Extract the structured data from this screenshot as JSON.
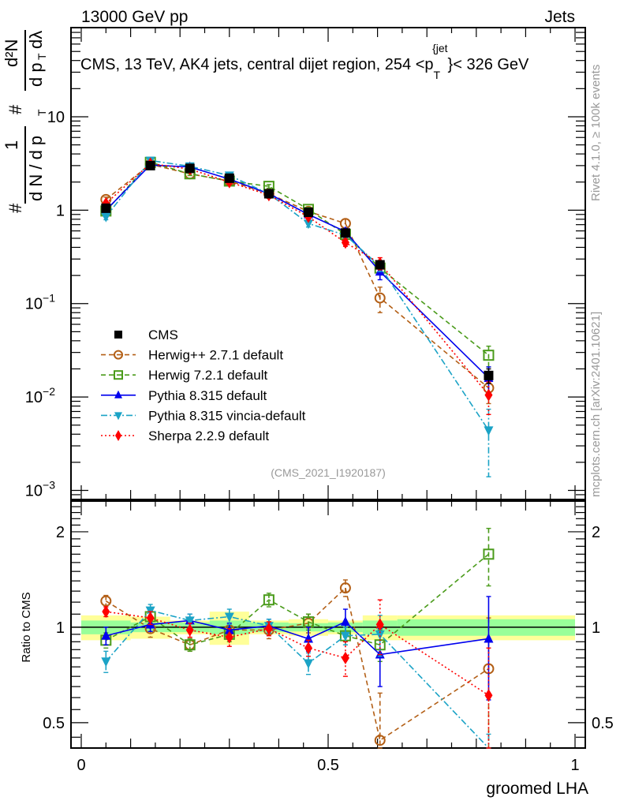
{
  "header": {
    "left": "13000 GeV pp",
    "right": "Jets"
  },
  "side_labels": {
    "rivet": "Rivet 4.1.0, ≥ 100k events",
    "mcplots": "mcplots.cern.ch [arXiv:2401.10621]"
  },
  "chart_data": [
    {
      "type": "line",
      "panel": "main",
      "title": "CMS, 13 TeV, AK4 jets, central dijet region, 254 <p_T^{jet}< 326 GeV",
      "title_parts": {
        "pre": "CMS, 13 TeV, AK4 jets, central dijet region, 254 <p",
        "sub": "T",
        "sup": "{jet",
        "post": "}< 326 GeV"
      },
      "ylabel": "1/dN/dp_T  d²N/dp_T dλ",
      "ylabel_parts": {
        "num_left": "1",
        "den_left": "d N / d p",
        "num_right": "d²N",
        "den_right": "d p",
        "lambda": "dλ",
        "sub": "T",
        "hash": "#"
      },
      "yscale": "log",
      "ylim": [
        0.0008,
        90
      ],
      "xlim": [
        -0.007,
        1.01
      ],
      "yticks": [
        {
          "v": 0.001,
          "m": "10",
          "e": "−3"
        },
        {
          "v": 0.01,
          "m": "10",
          "e": "−2"
        },
        {
          "v": 0.1,
          "m": "10",
          "e": "−1"
        },
        {
          "v": 1,
          "m": "1",
          "e": ""
        },
        {
          "v": 10,
          "m": "10",
          "e": ""
        }
      ],
      "watermark": "(CMS_2021_I1920187)",
      "legend_position": "lower-left",
      "x": [
        0.05,
        0.14,
        0.22,
        0.3,
        0.38,
        0.46,
        0.535,
        0.605,
        0.825
      ],
      "bin_edges": [
        0.0,
        0.1,
        0.18,
        0.26,
        0.34,
        0.42,
        0.5,
        0.57,
        0.64,
        1.0
      ],
      "series": [
        {
          "name": "CMS",
          "color": "#000000",
          "marker": "square-filled",
          "line": "none",
          "values": [
            1.05,
            3.0,
            2.8,
            2.2,
            1.5,
            0.95,
            0.57,
            0.26,
            0.017
          ],
          "errors": [
            0.05,
            0.12,
            0.1,
            0.08,
            0.06,
            0.04,
            0.03,
            0.02,
            0.003
          ]
        },
        {
          "name": "Herwig++ 2.7.1 default",
          "color": "#b35f16",
          "marker": "circle-open",
          "line": "dashed",
          "values": [
            1.3,
            3.1,
            2.45,
            2.05,
            1.5,
            0.97,
            0.72,
            0.115,
            0.0125
          ],
          "errors": [
            0.08,
            0.1,
            0.1,
            0.08,
            0.06,
            0.05,
            0.08,
            0.035,
            0.004
          ]
        },
        {
          "name": "Herwig 7.2.1 default",
          "color": "#4a9b1a",
          "marker": "square-open",
          "line": "dashed",
          "values": [
            0.98,
            3.25,
            2.45,
            2.05,
            1.8,
            1.02,
            0.55,
            0.24,
            0.028
          ],
          "errors": [
            0.06,
            0.1,
            0.1,
            0.08,
            0.08,
            0.05,
            0.04,
            0.03,
            0.007
          ]
        },
        {
          "name": "Pythia 8.315 default",
          "color": "#0000ee",
          "marker": "triangle-up",
          "line": "solid",
          "values": [
            1.0,
            3.05,
            2.9,
            2.15,
            1.5,
            0.9,
            0.59,
            0.22,
            0.016
          ],
          "errors": [
            0.06,
            0.1,
            0.1,
            0.08,
            0.06,
            0.04,
            0.05,
            0.04,
            0.005
          ]
        },
        {
          "name": "Pythia 8.315 vincia-default",
          "color": "#1ba3c6",
          "marker": "triangle-down",
          "line": "dashdot",
          "values": [
            0.85,
            3.4,
            2.95,
            2.35,
            1.5,
            0.72,
            0.54,
            0.25,
            0.0044
          ],
          "errors": [
            0.06,
            0.12,
            0.1,
            0.1,
            0.06,
            0.06,
            0.04,
            0.03,
            0.003
          ]
        },
        {
          "name": "Sherpa 2.2.9 default",
          "color": "#ff0000",
          "marker": "diamond",
          "line": "dotted",
          "values": [
            1.18,
            3.15,
            2.75,
            2.0,
            1.45,
            0.85,
            0.45,
            0.27,
            0.0105
          ],
          "errors": [
            0.06,
            0.1,
            0.1,
            0.08,
            0.06,
            0.04,
            0.04,
            0.04,
            0.004
          ]
        }
      ]
    },
    {
      "type": "line",
      "panel": "ratio",
      "xlabel": "groomed LHA",
      "ylabel": "Ratio to CMS",
      "yscale": "log",
      "ylim": [
        0.416,
        2.5
      ],
      "xlim": [
        -0.007,
        1.01
      ],
      "xticks": [
        {
          "v": 0,
          "l": "0"
        },
        {
          "v": 0.5,
          "l": "0.5"
        },
        {
          "v": 1,
          "l": "1"
        }
      ],
      "yticks": [
        {
          "v": 0.5,
          "l": "0.5"
        },
        {
          "v": 1,
          "l": "1"
        },
        {
          "v": 2,
          "l": "2"
        }
      ],
      "x": [
        0.05,
        0.14,
        0.22,
        0.3,
        0.38,
        0.46,
        0.535,
        0.605,
        0.825
      ],
      "band_inner": [
        0.05,
        0.035,
        0.035,
        0.05,
        0.035,
        0.03,
        0.035,
        0.05,
        0.06
      ],
      "band_outer": [
        0.09,
        0.08,
        0.05,
        0.12,
        0.05,
        0.06,
        0.05,
        0.09,
        0.09
      ],
      "series": [
        {
          "name": "Herwig++ 2.7.1 default",
          "color": "#b35f16",
          "marker": "circle-open",
          "line": "dashed",
          "values": [
            1.21,
            0.99,
            0.88,
            0.98,
            0.98,
            1.03,
            1.33,
            0.44,
            0.74
          ],
          "errors": [
            0.05,
            0.06,
            0.04,
            0.05,
            0.06,
            0.07,
            0.08,
            0.18,
            0.33
          ]
        },
        {
          "name": "Herwig 7.2.1 default",
          "color": "#4a9b1a",
          "marker": "square-open",
          "line": "dashed",
          "values": [
            0.91,
            1.08,
            0.88,
            0.95,
            1.22,
            1.04,
            0.94,
            0.88,
            1.7
          ],
          "errors": [
            0.05,
            0.05,
            0.04,
            0.05,
            0.06,
            0.06,
            0.06,
            0.1,
            0.35
          ]
        },
        {
          "name": "Pythia 8.315 default",
          "color": "#0000ee",
          "marker": "triangle-up",
          "line": "solid",
          "values": [
            0.94,
            1.02,
            1.05,
            0.98,
            1.01,
            0.92,
            1.04,
            0.82,
            0.92
          ],
          "errors": [
            0.06,
            0.05,
            0.05,
            0.05,
            0.05,
            0.08,
            0.1,
            0.17,
            0.33
          ]
        },
        {
          "name": "Pythia 8.315 vincia-default",
          "color": "#1ba3c6",
          "marker": "triangle-down",
          "line": "dashdot",
          "values": [
            0.78,
            1.13,
            1.05,
            1.08,
            1.01,
            0.77,
            0.94,
            0.95,
            0.26
          ],
          "errors": [
            0.06,
            0.05,
            0.05,
            0.06,
            0.05,
            0.06,
            0.06,
            0.14,
            0.2
          ]
        },
        {
          "name": "Sherpa 2.2.9 default",
          "color": "#ff0000",
          "marker": "diamond",
          "line": "dotted",
          "values": [
            1.12,
            1.07,
            0.98,
            0.93,
            0.99,
            0.86,
            0.8,
            1.02,
            0.61
          ],
          "errors": [
            0.04,
            0.05,
            0.05,
            0.06,
            0.05,
            0.05,
            0.1,
            0.2,
            0.25
          ]
        }
      ]
    }
  ]
}
